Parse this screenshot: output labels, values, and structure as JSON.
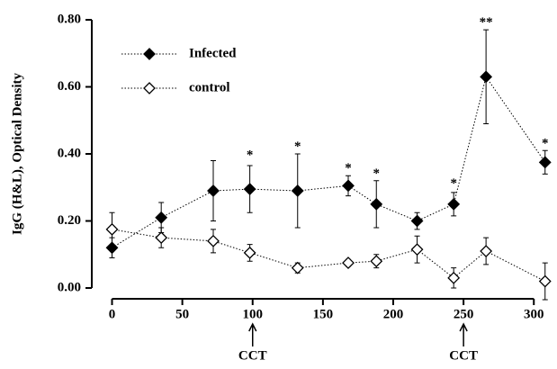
{
  "chart_data": {
    "type": "line",
    "y_label": "IgG (H&L), Optical Density",
    "x": [
      0,
      35,
      72,
      98,
      132,
      168,
      188,
      217,
      243,
      266,
      308
    ],
    "series": [
      {
        "name": "Infected",
        "color": "#000000",
        "marker": "filled-diamond",
        "values": [
          0.12,
          0.21,
          0.29,
          0.295,
          0.29,
          0.305,
          0.25,
          0.2,
          0.25,
          0.63,
          0.375
        ],
        "errors": [
          0.03,
          0.045,
          0.09,
          0.07,
          0.11,
          0.03,
          0.07,
          0.025,
          0.035,
          0.14,
          0.035
        ]
      },
      {
        "name": "control",
        "color": "#000000",
        "marker": "open-diamond",
        "values": [
          0.175,
          0.15,
          0.14,
          0.105,
          0.06,
          0.075,
          0.08,
          0.115,
          0.03,
          0.11,
          0.02
        ],
        "errors": [
          0.05,
          0.03,
          0.035,
          0.025,
          0.015,
          0.01,
          0.02,
          0.04,
          0.03,
          0.04,
          0.055
        ]
      }
    ],
    "significance": [
      {
        "x": 98,
        "y": 0.395,
        "label": "*"
      },
      {
        "x": 132,
        "y": 0.42,
        "label": "*"
      },
      {
        "x": 168,
        "y": 0.355,
        "label": "*"
      },
      {
        "x": 188,
        "y": 0.34,
        "label": "*"
      },
      {
        "x": 243,
        "y": 0.31,
        "label": "*"
      },
      {
        "x": 266,
        "y": 0.79,
        "label": "**"
      },
      {
        "x": 308,
        "y": 0.43,
        "label": "*"
      }
    ],
    "arrows": [
      {
        "x": 100,
        "label": "CCT"
      },
      {
        "x": 250,
        "label": "CCT"
      }
    ],
    "xlim": [
      -8,
      312
    ],
    "xticks": [
      0,
      50,
      100,
      150,
      200,
      250,
      300
    ],
    "ylim": [
      0,
      0.8
    ],
    "yticks": [
      {
        "value": 0,
        "label": "0.00"
      },
      {
        "value": 0.2,
        "label": "0.20"
      },
      {
        "value": 0.4,
        "label": "0.40"
      },
      {
        "value": 0.6,
        "label": "0.60"
      },
      {
        "value": 0.8,
        "label": "0.80"
      }
    ]
  }
}
